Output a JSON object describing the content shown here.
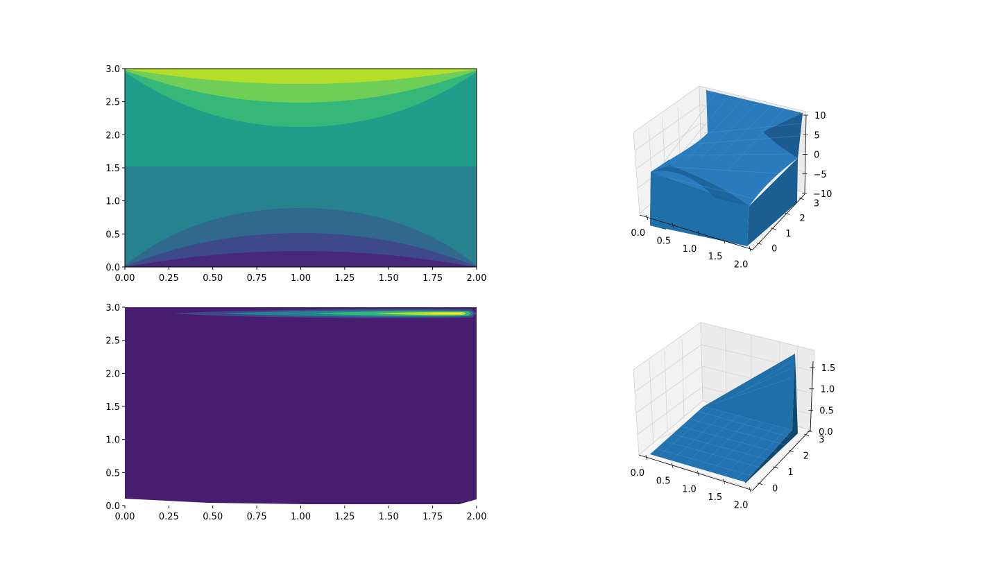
{
  "chart_data": [
    {
      "type": "contour",
      "xticks": [
        "0.00",
        "0.25",
        "0.50",
        "0.75",
        "1.00",
        "1.25",
        "1.50",
        "1.75",
        "2.00"
      ],
      "yticks": [
        "0.0",
        "0.5",
        "1.0",
        "1.5",
        "2.0",
        "2.5",
        "3.0"
      ],
      "xlim": [
        0,
        2
      ],
      "ylim": [
        0,
        3
      ],
      "colormap": "viridis",
      "contour_boundaries_center_y": [
        0.22,
        0.5,
        0.9,
        1.5,
        2.1,
        2.5,
        2.78
      ],
      "contour_boundaries_edge_y": [
        0.02,
        0.05,
        0.1,
        1.55,
        2.9,
        2.95,
        2.98
      ]
    },
    {
      "type": "surface3d",
      "xticks": [
        "0.0",
        "0.5",
        "1.0",
        "1.5",
        "2.0"
      ],
      "yticks": [
        "0",
        "1",
        "2",
        "3"
      ],
      "zticks": [
        "−10",
        "−5",
        "0",
        "5",
        "10"
      ],
      "xlim": [
        0,
        2
      ],
      "ylim": [
        0,
        3
      ],
      "zlim": [
        -10,
        10
      ],
      "color": "#1f77b4"
    },
    {
      "type": "contour",
      "xticks": [
        "0.00",
        "0.25",
        "0.50",
        "0.75",
        "1.00",
        "1.25",
        "1.50",
        "1.75",
        "2.00"
      ],
      "yticks": [
        "0.0",
        "0.5",
        "1.0",
        "1.5",
        "2.0",
        "2.5",
        "3.0"
      ],
      "xlim": [
        0,
        2
      ],
      "ylim": [
        0,
        3
      ],
      "colormap": "viridis",
      "note_peak": {
        "x": 1.9,
        "y": 2.9
      }
    },
    {
      "type": "surface3d",
      "xticks": [
        "0.0",
        "0.5",
        "1.0",
        "1.5",
        "2.0"
      ],
      "yticks": [
        "0",
        "1",
        "2",
        "3"
      ],
      "zticks": [
        "0.0",
        "0.5",
        "1.0",
        "1.5"
      ],
      "xlim": [
        0,
        2
      ],
      "ylim": [
        0,
        3
      ],
      "zlim": [
        0,
        1.6
      ],
      "color": "#1f77b4"
    }
  ],
  "colors": {
    "viridis": [
      "#440154",
      "#482878",
      "#3e4989",
      "#31688e",
      "#26828e",
      "#1f9e89",
      "#35b779",
      "#6ece58",
      "#b5de2b",
      "#fde725"
    ],
    "surface": "#1f77b4",
    "surface_dark": "#12486e",
    "pane": "#f2f2f2",
    "grid": "#d9d9d9"
  }
}
